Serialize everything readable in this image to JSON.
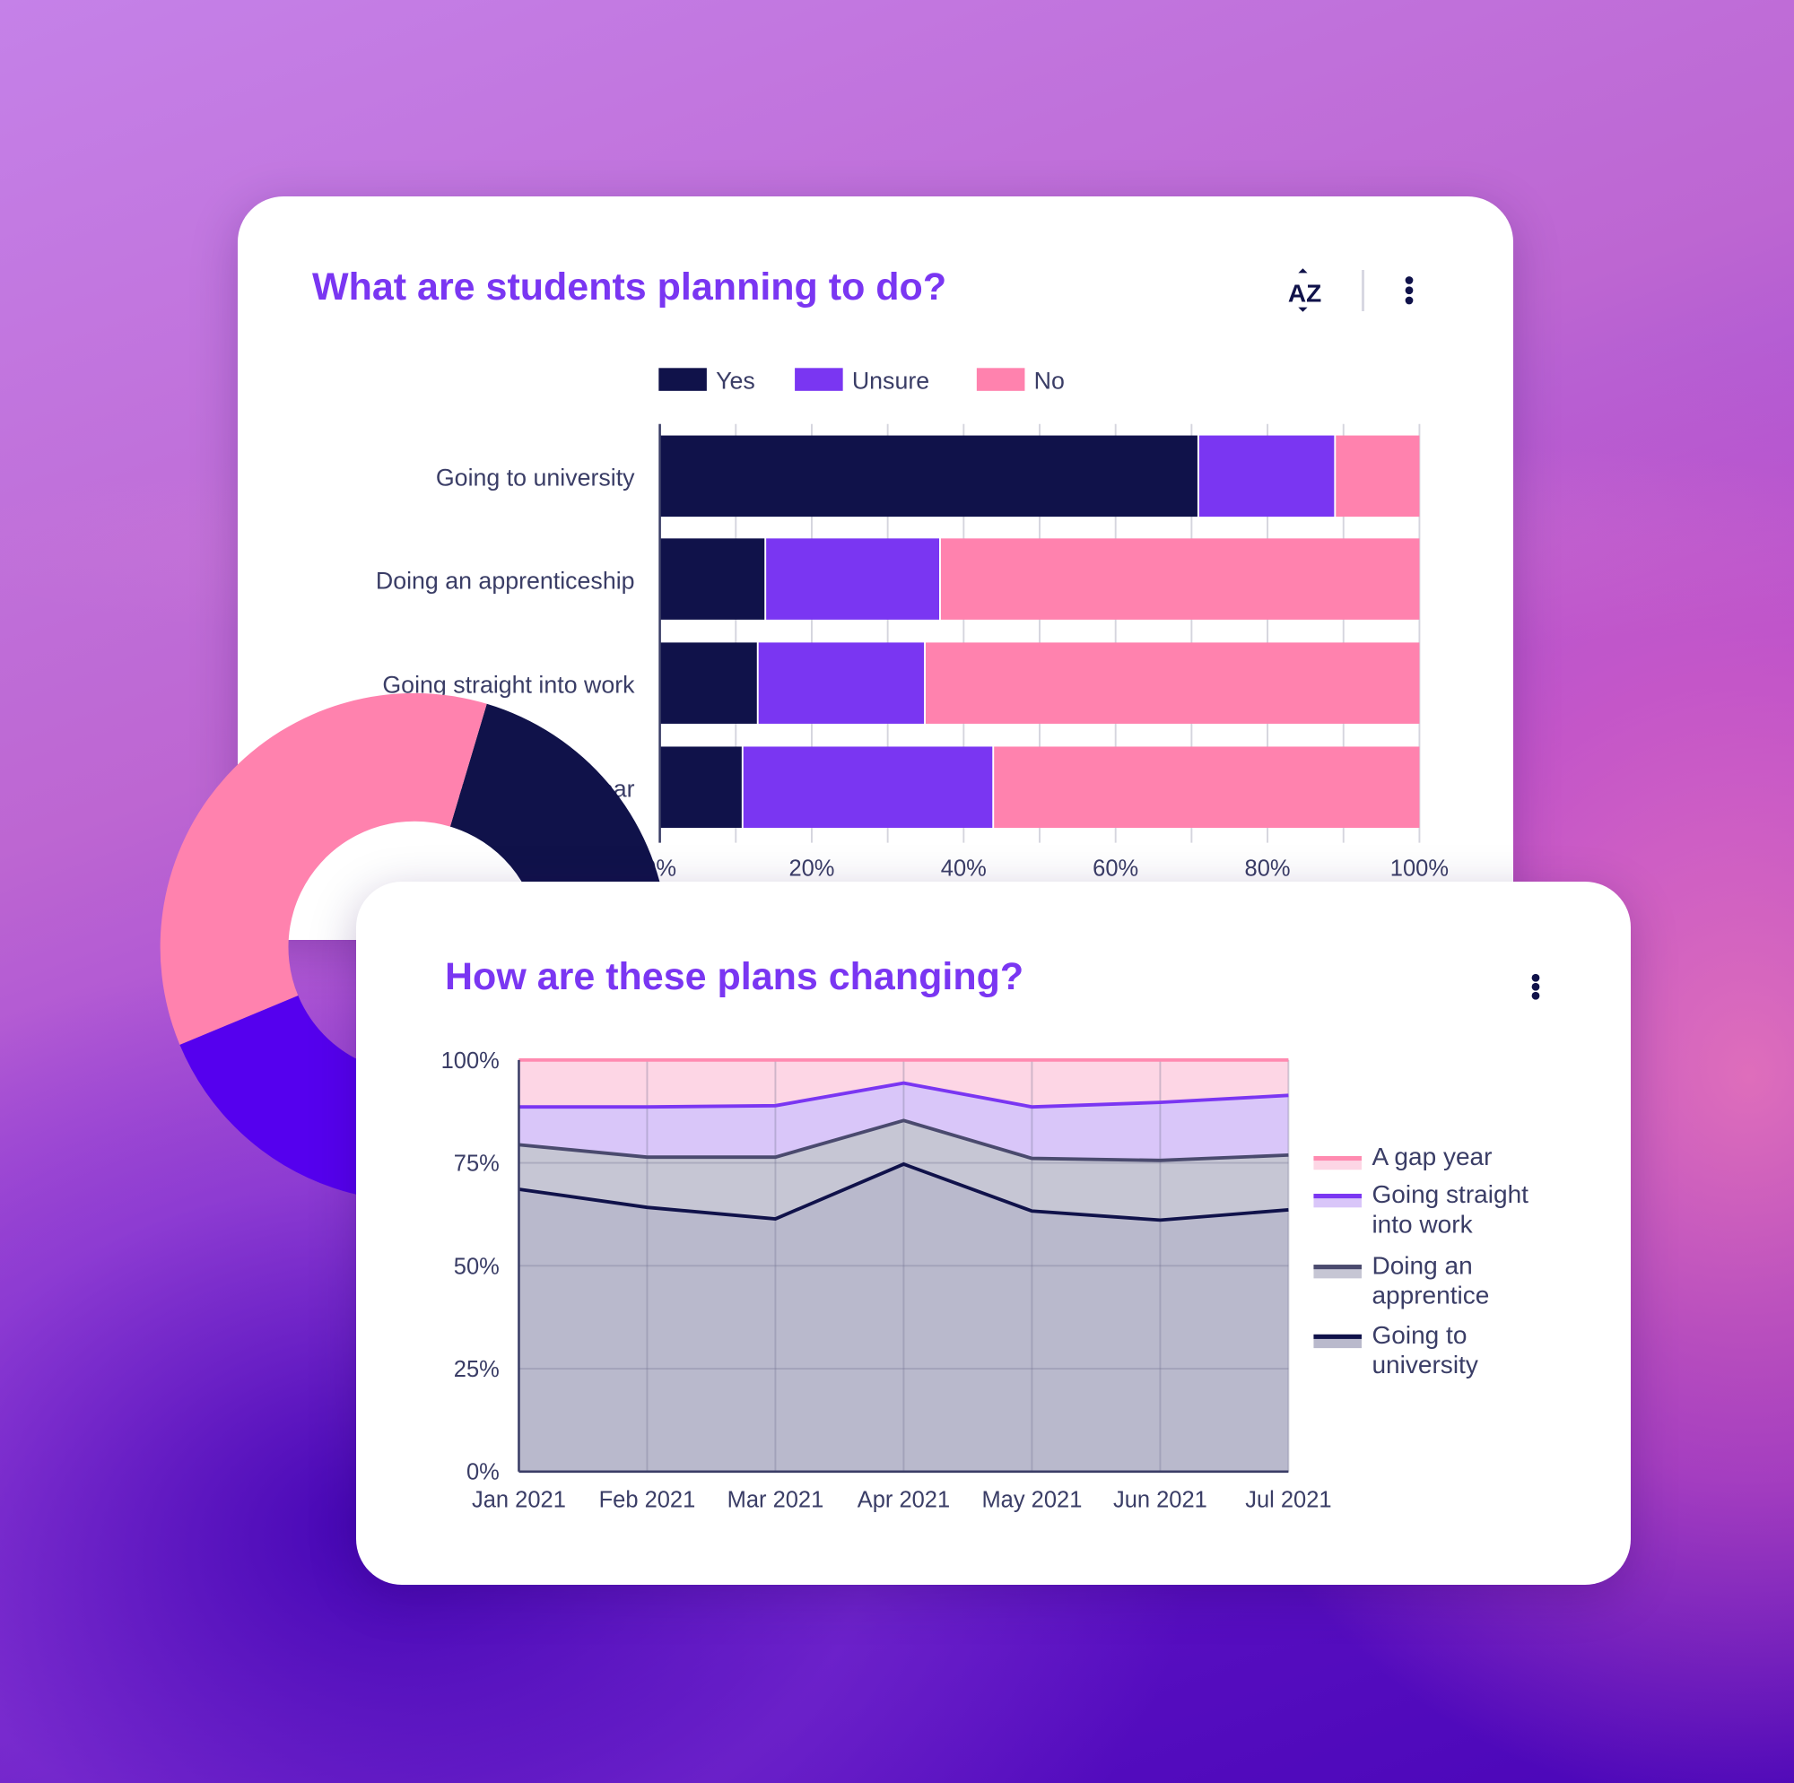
{
  "colors": {
    "yes": "#10124a",
    "unsure": "#7a36f2",
    "no": "#ff82ae",
    "title": "#7a36f2",
    "donut_purple": "#5500ee"
  },
  "card1": {
    "title": "What are students planning to do?",
    "sort_icon": "sort-az-icon",
    "menu_icon": "more-vertical-icon"
  },
  "card2": {
    "title": "How are these plans changing?",
    "menu_icon": "more-vertical-icon"
  },
  "chart_data": [
    {
      "type": "bar",
      "orientation": "horizontal",
      "stacked": true,
      "legend": [
        "Yes",
        "Unsure",
        "No"
      ],
      "legend_position": "top",
      "categories": [
        "Going to university",
        "Doing an apprenticeship",
        "Going straight into work",
        "Taking a gap year"
      ],
      "series": [
        {
          "name": "Yes",
          "values": [
            71,
            14,
            13,
            11
          ]
        },
        {
          "name": "Unsure",
          "values": [
            18,
            23,
            22,
            33
          ]
        },
        {
          "name": "No",
          "values": [
            11,
            63,
            65,
            56
          ]
        }
      ],
      "xticks": [
        "0%",
        "20%",
        "40%",
        "60%",
        "80%",
        "100%"
      ],
      "xlim": [
        0,
        100
      ],
      "grid": true
    },
    {
      "type": "area",
      "stacked": true,
      "x": [
        "Jan 2021",
        "Feb 2021",
        "Mar 2021",
        "Apr 2021",
        "May 2021",
        "Jun 2021",
        "Jul 2021"
      ],
      "yticks": [
        "0%",
        "25%",
        "50%",
        "75%",
        "100%"
      ],
      "ylim": [
        0,
        100
      ],
      "grid": true,
      "legend_position": "right",
      "series": [
        {
          "name": "Going to university",
          "line": "#10124a",
          "fill": "#b9b9cc",
          "values": [
            68.6,
            64.2,
            61.4,
            74.7,
            63.3,
            61.1,
            63.6
          ]
        },
        {
          "name": "Doing an apprentice",
          "line": "#4a4a6e",
          "fill": "#c6c6d4",
          "values": [
            10.8,
            12.2,
            15.0,
            10.6,
            12.8,
            14.5,
            13.3
          ]
        },
        {
          "name": "Going straight into work",
          "line": "#7a36f2",
          "fill": "#d9c6f9",
          "values": [
            9.2,
            12.2,
            12.5,
            9.1,
            12.5,
            14.1,
            14.5
          ]
        },
        {
          "name": "A gap year",
          "line": "#ff8ab0",
          "fill": "#fdd6e5",
          "values": [
            11.4,
            11.4,
            11.1,
            5.6,
            11.4,
            10.3,
            8.6
          ]
        }
      ],
      "legend": [
        [
          "A gap year"
        ],
        [
          "Going straight",
          "into work"
        ],
        [
          "Doing an",
          "apprentice"
        ],
        [
          "Going to",
          "university"
        ]
      ]
    }
  ]
}
